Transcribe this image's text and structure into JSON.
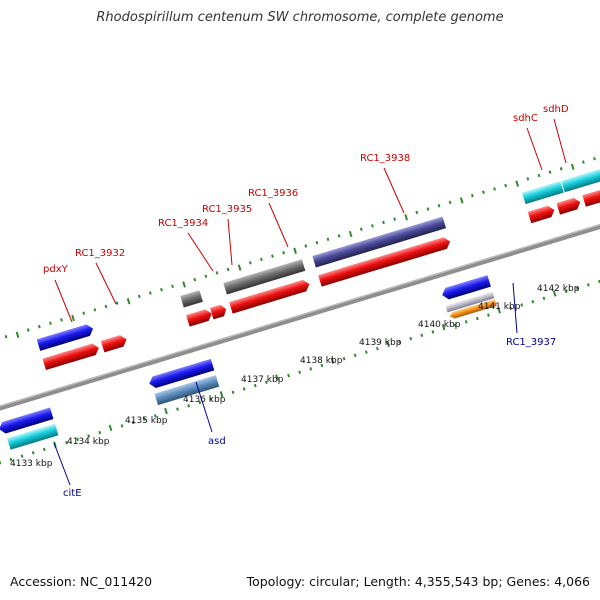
{
  "title": "Rhodospirillum centenum SW chromosome, complete genome",
  "footer": {
    "accession": "Accession: NC_011420",
    "summary": "Topology: circular; Length: 4,355,543 bp; Genes: 4,066"
  },
  "colors": {
    "backbone": "#8a8a8a",
    "tick": "#2e8b2e",
    "upper_label": "#cc0000",
    "lower_label": "#000099",
    "blue_gene": "#1a1aee",
    "red_cds": "#ee1111",
    "cyan_gene": "#17cfdc",
    "gray_gene": "#6f6f6f",
    "navy_gene": "#4a4a9a",
    "steel_gene": "#5f8fbf",
    "orange_gene": "#f7961e"
  },
  "scale_labels": [
    "4133 kbp",
    "4134 kbp",
    "4135 kbp",
    "4136 kbp",
    "4137 kbp",
    "4138 kbp",
    "4139 kbp",
    "4140 kbp",
    "4141 kbp",
    "4142 kbp"
  ],
  "genes_forward": [
    "pdxY",
    "RC1_3932",
    "RC1_3934",
    "RC1_3935",
    "RC1_3936",
    "RC1_3938",
    "sdhC",
    "sdhD"
  ],
  "genes_reverse": [
    "citE",
    "asd",
    "RC1_3937"
  ]
}
